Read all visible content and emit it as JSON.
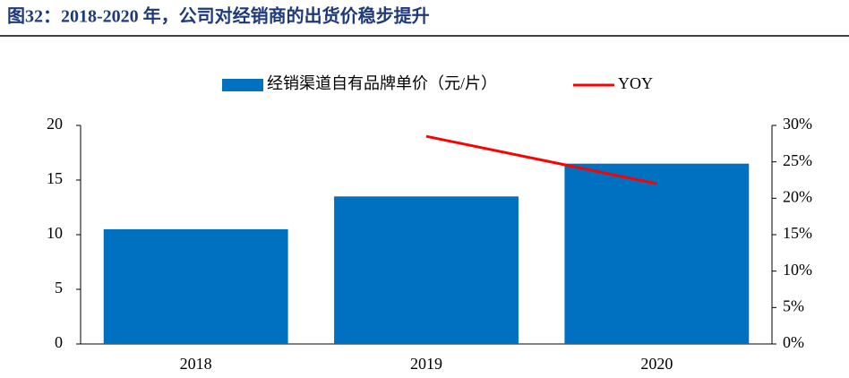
{
  "chart_data": {
    "type": "bar_line",
    "title": "图32：2018-2020 年，公司对经销商的出货价稳步提升",
    "categories": [
      "2018",
      "2019",
      "2020"
    ],
    "series": [
      {
        "name": "经销渠道自有品牌单价（元/片）",
        "type": "bar",
        "color": "#0070c0",
        "values": [
          10.5,
          13.5,
          16.5
        ]
      },
      {
        "name": "YOY",
        "type": "line",
        "axis": "y2",
        "color": "#ff0000",
        "values": [
          null,
          28.5,
          22
        ]
      }
    ],
    "ylim": [
      0,
      20
    ],
    "yticks": [
      0,
      5,
      10,
      15,
      20
    ],
    "y2lim": [
      0,
      30
    ],
    "y2ticks": [
      {
        "value": 0,
        "label": "0%"
      },
      {
        "value": 5,
        "label": "5%"
      },
      {
        "value": 10,
        "label": "10%"
      },
      {
        "value": 15,
        "label": "15%"
      },
      {
        "value": 20,
        "label": "20%"
      },
      {
        "value": 25,
        "label": "25%"
      },
      {
        "value": 30,
        "label": "30%"
      }
    ],
    "grid": false,
    "legend": "top"
  }
}
